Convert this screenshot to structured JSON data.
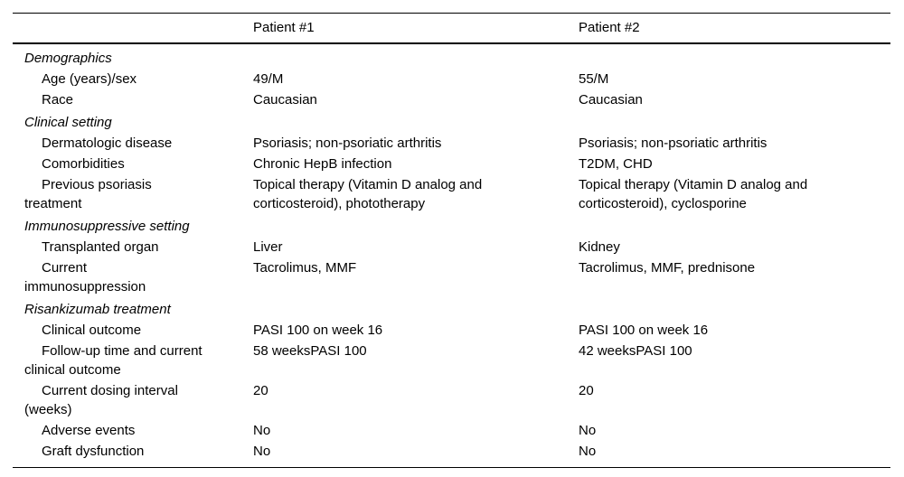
{
  "table": {
    "header": {
      "label_col": "",
      "patient1": "Patient #1",
      "patient2": "Patient #2"
    },
    "sections": [
      {
        "label": "Demographics",
        "rows": [
          {
            "label": "Age (years)/sex",
            "patient1": "49/M",
            "patient2": "55/M"
          },
          {
            "label": "Race",
            "patient1": "Caucasian",
            "patient2": "Caucasian"
          }
        ]
      },
      {
        "label": "Clinical setting",
        "rows": [
          {
            "label": "Dermatologic disease",
            "patient1": "Psoriasis; non-psoriatic arthritis",
            "patient2": "Psoriasis; non-psoriatic arthritis"
          },
          {
            "label": "Comorbidities",
            "patient1": "Chronic HepB infection",
            "patient2": "T2DM, CHD"
          },
          {
            "label": "Previous psoriasis\ntreatment",
            "patient1": "Topical therapy (Vitamin D analog and\ncorticosteroid), phototherapy",
            "patient2": "Topical therapy (Vitamin D analog and\ncorticosteroid), cyclosporine"
          }
        ]
      },
      {
        "label": "Immunosuppressive setting",
        "rows": [
          {
            "label": "Transplanted organ",
            "patient1": "Liver",
            "patient2": "Kidney"
          },
          {
            "label": "Current\nimmunosuppression",
            "patient1": "Tacrolimus, MMF",
            "patient2": "Tacrolimus, MMF, prednisone"
          }
        ]
      },
      {
        "label": "Risankizumab treatment",
        "rows": [
          {
            "label": "Clinical outcome",
            "patient1": "PASI 100 on week 16",
            "patient2": "PASI 100 on week 16"
          },
          {
            "label": "Follow-up time and current\nclinical outcome",
            "patient1": "58 weeksPASI 100",
            "patient2": "42 weeksPASI 100"
          },
          {
            "label": "Current dosing interval\n(weeks)",
            "patient1": "20",
            "patient2": "20"
          },
          {
            "label": "Adverse events",
            "patient1": "No",
            "patient2": "No"
          },
          {
            "label": "Graft dysfunction",
            "patient1": "No",
            "patient2": "No"
          }
        ]
      }
    ]
  },
  "colors": {
    "text": "#000000",
    "rule": "#000000",
    "background": "#ffffff"
  }
}
